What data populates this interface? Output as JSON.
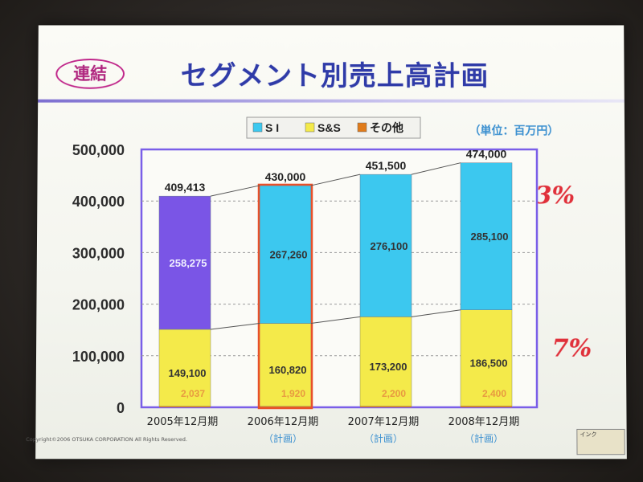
{
  "slide": {
    "badge": "連結",
    "title": "セグメント別売上高計画",
    "unit": "（単位：百万円）",
    "copyright": "Copyright©2006 OTSUKA CORPORATION All Rights Reserved.",
    "ink_toolbar": "インク",
    "annotations": [
      "3%",
      "7%"
    ]
  },
  "chart_data": {
    "type": "bar",
    "stacked": true,
    "categories": [
      "2005年12月期",
      "2006年12月期",
      "2007年12月期",
      "2008年12月期"
    ],
    "category_notes": [
      "",
      "（計画）",
      "（計画）",
      "（計画）"
    ],
    "series": [
      {
        "name": "その他",
        "values": [
          2037,
          1920,
          2200,
          2400
        ],
        "color": "#e07b1a"
      },
      {
        "name": "S&S",
        "values": [
          149100,
          160820,
          173200,
          186500
        ],
        "color": "#f4ea4a"
      },
      {
        "name": "S I",
        "values": [
          258275,
          267260,
          276100,
          285100
        ],
        "color": "#3cc8ef"
      }
    ],
    "totals": [
      409413,
      430000,
      451500,
      474000
    ],
    "total_labels": [
      "409,413",
      "430,000",
      "451,500",
      "474,000"
    ],
    "segment_labels": {
      "その他": [
        "2,037",
        "1,920",
        "2,200",
        "2,400"
      ],
      "S&S": [
        "149,100",
        "160,820",
        "173,200",
        "186,500"
      ],
      "S I": [
        "258,275",
        "267,260",
        "276,100",
        "285,100"
      ]
    },
    "legend_order": [
      "S I",
      "S&S",
      "その他"
    ],
    "ylim": [
      0,
      500000
    ],
    "yticks": [
      0,
      100000,
      200000,
      300000,
      400000,
      500000
    ],
    "ytick_labels": [
      "0",
      "100,000",
      "200,000",
      "300,000",
      "400,000",
      "500,000"
    ],
    "grid": true,
    "legend_position": "top",
    "first_bar_si_color": "#7a55e6",
    "highlight_color": "#e8502a",
    "frame_color": "#7a5ee8"
  }
}
